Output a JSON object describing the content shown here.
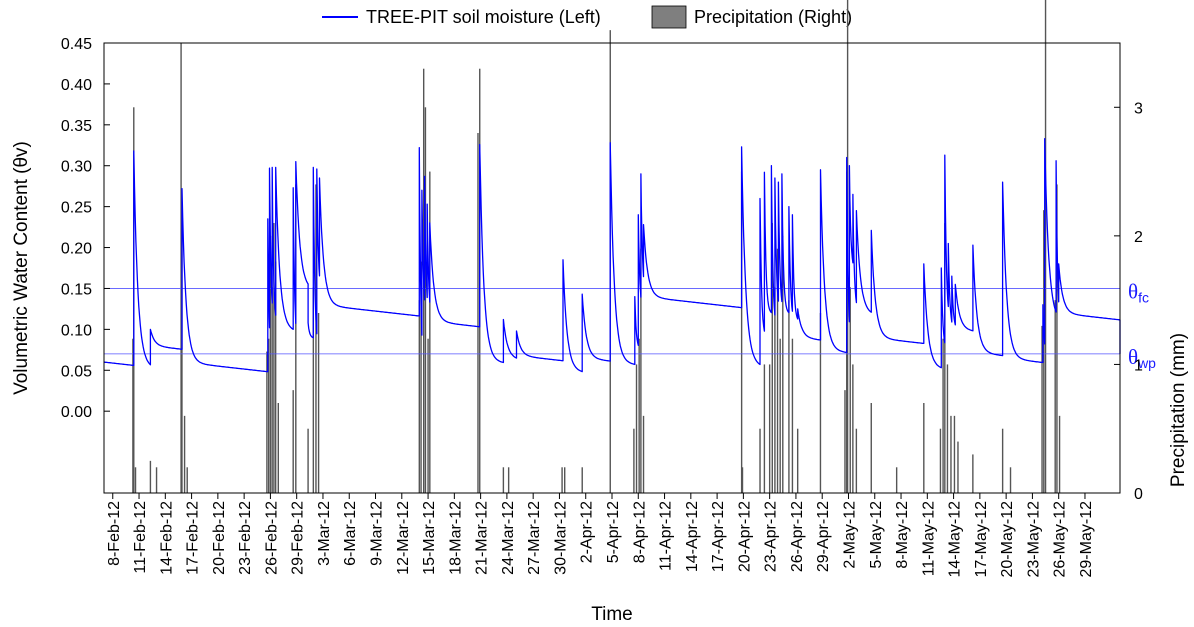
{
  "chart_data": {
    "type": "line",
    "legend": [
      {
        "label": "TREE-PIT soil moisture (Left)",
        "kind": "line",
        "color": "#0000ff"
      },
      {
        "label": "Precipitation (Right)",
        "kind": "bar",
        "color": "#7f7f7f"
      }
    ],
    "legend_position": "top-center",
    "xlabel": "Time",
    "ylabel_left": "Volumetric Water Content (θv)",
    "ylabel_right": "Precipitation (mm)",
    "x_range": [
      "2012-02-07",
      "2012-06-02"
    ],
    "x_ticks": [
      "8-Feb-12",
      "11-Feb-12",
      "14-Feb-12",
      "17-Feb-12",
      "20-Feb-12",
      "23-Feb-12",
      "26-Feb-12",
      "29-Feb-12",
      "3-Mar-12",
      "6-Mar-12",
      "9-Mar-12",
      "12-Mar-12",
      "15-Mar-12",
      "18-Mar-12",
      "21-Mar-12",
      "24-Mar-12",
      "27-Mar-12",
      "30-Mar-12",
      "2-Apr-12",
      "5-Apr-12",
      "8-Apr-12",
      "11-Apr-12",
      "14-Apr-12",
      "17-Apr-12",
      "20-Apr-12",
      "23-Apr-12",
      "26-Apr-12",
      "29-Apr-12",
      "2-May-12",
      "5-May-12",
      "8-May-12",
      "11-May-12",
      "14-May-12",
      "17-May-12",
      "20-May-12",
      "23-May-12",
      "26-May-12",
      "29-May-12"
    ],
    "y_left_ticks": [
      "0.00",
      "0.05",
      "0.10",
      "0.15",
      "0.20",
      "0.25",
      "0.30",
      "0.35",
      "0.40",
      "0.45"
    ],
    "y_left_range": [
      -0.1,
      0.45
    ],
    "y_right_ticks": [
      "0",
      "1",
      "2",
      "3"
    ],
    "y_right_range": [
      0,
      3.5
    ],
    "reference_lines": [
      {
        "name": "θfc",
        "value": 0.15,
        "color": "#5555ff"
      },
      {
        "name": "θwp",
        "value": 0.07,
        "color": "#5555ff"
      }
    ],
    "grid": false,
    "soil_moisture_events": [
      {
        "date": "2012-02-07",
        "peak": 0.06,
        "base": 0.06
      },
      {
        "date": "2012-02-10.4",
        "peak": 0.318,
        "base": 0.055
      },
      {
        "date": "2012-02-12.3",
        "peak": 0.1,
        "base": 0.08
      },
      {
        "date": "2012-02-15.9",
        "peak": 0.272,
        "base": 0.06
      },
      {
        "date": "2012-02-25.7",
        "peak": 0.235,
        "base": 0.045
      },
      {
        "date": "2012-02-25.9",
        "peak": 0.297,
        "base": 0.1
      },
      {
        "date": "2012-02-26.2",
        "peak": 0.298,
        "base": 0.1
      },
      {
        "date": "2012-02-26.6",
        "peak": 0.298,
        "base": 0.1
      },
      {
        "date": "2012-02-28.6",
        "peak": 0.273,
        "base": 0.075
      },
      {
        "date": "2012-02-28.9",
        "peak": 0.305,
        "base": 0.15
      },
      {
        "date": "2012-03-01.3",
        "peak": 0.108,
        "base": 0.09
      },
      {
        "date": "2012-03-01.9",
        "peak": 0.298,
        "base": 0.075
      },
      {
        "date": "2012-03-02.3",
        "peak": 0.296,
        "base": 0.14
      },
      {
        "date": "2012-03-02.6",
        "peak": 0.285,
        "base": 0.13
      },
      {
        "date": "2012-03-14.0",
        "peak": 0.322,
        "base": 0.048
      },
      {
        "date": "2012-03-14.3",
        "peak": 0.27,
        "base": 0.11
      },
      {
        "date": "2012-03-14.6",
        "peak": 0.287,
        "base": 0.11
      },
      {
        "date": "2012-03-14.9",
        "peak": 0.253,
        "base": 0.11
      },
      {
        "date": "2012-03-15.2",
        "peak": 0.23,
        "base": 0.11
      },
      {
        "date": "2012-03-20.9",
        "peak": 0.326,
        "base": 0.062
      },
      {
        "date": "2012-03-23.6",
        "peak": 0.112,
        "base": 0.065
      },
      {
        "date": "2012-03-25.1",
        "peak": 0.098,
        "base": 0.068
      },
      {
        "date": "2012-03-30.4",
        "peak": 0.185,
        "base": 0.05
      },
      {
        "date": "2012-04-01.6",
        "peak": 0.143,
        "base": 0.065
      },
      {
        "date": "2012-04-04.8",
        "peak": 0.328,
        "base": 0.06
      },
      {
        "date": "2012-04-07.6",
        "peak": 0.14,
        "base": 0.075
      },
      {
        "date": "2012-04-08.0",
        "peak": 0.24,
        "base": 0.12
      },
      {
        "date": "2012-04-08.3",
        "peak": 0.29,
        "base": 0.14
      },
      {
        "date": "2012-04-08.6",
        "peak": 0.228,
        "base": 0.14
      },
      {
        "date": "2012-04-19.8",
        "peak": 0.323,
        "base": 0.057
      },
      {
        "date": "2012-04-21.9",
        "peak": 0.26,
        "base": 0.09
      },
      {
        "date": "2012-04-22.4",
        "peak": 0.292,
        "base": 0.12
      },
      {
        "date": "2012-04-23.2",
        "peak": 0.3,
        "base": 0.1
      },
      {
        "date": "2012-04-23.6",
        "peak": 0.285,
        "base": 0.12
      },
      {
        "date": "2012-04-24.0",
        "peak": 0.28,
        "base": 0.12
      },
      {
        "date": "2012-04-24.4",
        "peak": 0.29,
        "base": 0.12
      },
      {
        "date": "2012-04-25.2",
        "peak": 0.25,
        "base": 0.11
      },
      {
        "date": "2012-04-25.6",
        "peak": 0.24,
        "base": 0.11
      },
      {
        "date": "2012-04-26.2",
        "peak": 0.125,
        "base": 0.09
      },
      {
        "date": "2012-04-28.8",
        "peak": 0.295,
        "base": 0.075
      },
      {
        "date": "2012-05-01.8",
        "peak": 0.31,
        "base": 0.07
      },
      {
        "date": "2012-05-02.1",
        "peak": 0.3,
        "base": 0.17
      },
      {
        "date": "2012-05-02.5",
        "peak": 0.265,
        "base": 0.12
      },
      {
        "date": "2012-05-02.9",
        "peak": 0.245,
        "base": 0.12
      },
      {
        "date": "2012-05-04.6",
        "peak": 0.221,
        "base": 0.09
      },
      {
        "date": "2012-05-10.6",
        "peak": 0.18,
        "base": 0.054
      },
      {
        "date": "2012-05-12.6",
        "peak": 0.175,
        "base": 0.075
      },
      {
        "date": "2012-05-13.0",
        "peak": 0.313,
        "base": 0.11
      },
      {
        "date": "2012-05-13.4",
        "peak": 0.205,
        "base": 0.1
      },
      {
        "date": "2012-05-13.8",
        "peak": 0.165,
        "base": 0.1
      },
      {
        "date": "2012-05-14.2",
        "peak": 0.155,
        "base": 0.1
      },
      {
        "date": "2012-05-16.2",
        "peak": 0.203,
        "base": 0.072
      },
      {
        "date": "2012-05-19.6",
        "peak": 0.28,
        "base": 0.065
      },
      {
        "date": "2012-05-24.2",
        "peak": 0.13,
        "base": 0.062
      },
      {
        "date": "2012-05-24.4",
        "peak": 0.333,
        "base": 0.11
      },
      {
        "date": "2012-05-25.7",
        "peak": 0.306,
        "base": 0.1
      },
      {
        "date": "2012-05-26.0",
        "peak": 0.18,
        "base": 0.12
      },
      {
        "date": "2012-06-02",
        "peak": 0.07,
        "base": 0.07
      }
    ],
    "precipitation": [
      {
        "date": "2012-02-10.4",
        "mm": 3.0
      },
      {
        "date": "2012-02-10.3",
        "mm": 1.2
      },
      {
        "date": "2012-02-10.6",
        "mm": 0.2
      },
      {
        "date": "2012-02-12.3",
        "mm": 0.25
      },
      {
        "date": "2012-02-13.0",
        "mm": 0.2
      },
      {
        "date": "2012-02-15.8",
        "mm": 3.5
      },
      {
        "date": "2012-02-15.9",
        "mm": 2.1
      },
      {
        "date": "2012-02-16.2",
        "mm": 0.6
      },
      {
        "date": "2012-02-16.5",
        "mm": 0.2
      },
      {
        "date": "2012-02-25.6",
        "mm": 1.1
      },
      {
        "date": "2012-02-25.8",
        "mm": 1.2
      },
      {
        "date": "2012-02-26.0",
        "mm": 2.0
      },
      {
        "date": "2012-02-26.2",
        "mm": 1.6
      },
      {
        "date": "2012-02-26.4",
        "mm": 2.1
      },
      {
        "date": "2012-02-26.6",
        "mm": 1.8
      },
      {
        "date": "2012-02-26.9",
        "mm": 0.7
      },
      {
        "date": "2012-02-28.6",
        "mm": 0.8
      },
      {
        "date": "2012-02-28.9",
        "mm": 2.4
      },
      {
        "date": "2012-03-01.3",
        "mm": 0.5
      },
      {
        "date": "2012-03-01.9",
        "mm": 1.6
      },
      {
        "date": "2012-03-02.2",
        "mm": 2.4
      },
      {
        "date": "2012-03-02.5",
        "mm": 1.4
      },
      {
        "date": "2012-03-14.0",
        "mm": 1.5
      },
      {
        "date": "2012-03-14.2",
        "mm": 1.8
      },
      {
        "date": "2012-03-14.5",
        "mm": 3.3
      },
      {
        "date": "2012-03-14.7",
        "mm": 3.0
      },
      {
        "date": "2012-03-15.0",
        "mm": 1.2
      },
      {
        "date": "2012-03-15.2",
        "mm": 2.5
      },
      {
        "date": "2012-03-20.9",
        "mm": 3.3
      },
      {
        "date": "2012-03-20.7",
        "mm": 2.8
      },
      {
        "date": "2012-03-23.6",
        "mm": 0.2
      },
      {
        "date": "2012-03-24.2",
        "mm": 0.2
      },
      {
        "date": "2012-03-30.3",
        "mm": 0.2
      },
      {
        "date": "2012-03-30.6",
        "mm": 0.2
      },
      {
        "date": "2012-04-01.6",
        "mm": 0.2
      },
      {
        "date": "2012-04-04.8",
        "mm": 3.6
      },
      {
        "date": "2012-04-07.5",
        "mm": 0.5
      },
      {
        "date": "2012-04-07.8",
        "mm": 1.0
      },
      {
        "date": "2012-04-08.1",
        "mm": 1.2
      },
      {
        "date": "2012-04-08.3",
        "mm": 1.9
      },
      {
        "date": "2012-04-08.6",
        "mm": 0.6
      },
      {
        "date": "2012-04-19.8",
        "mm": 2.5
      },
      {
        "date": "2012-04-19.9",
        "mm": 0.2
      },
      {
        "date": "2012-04-21.9",
        "mm": 0.5
      },
      {
        "date": "2012-04-22.4",
        "mm": 1.0
      },
      {
        "date": "2012-04-23.0",
        "mm": 1.0
      },
      {
        "date": "2012-04-23.3",
        "mm": 2.1
      },
      {
        "date": "2012-04-23.6",
        "mm": 1.6
      },
      {
        "date": "2012-04-23.9",
        "mm": 1.9
      },
      {
        "date": "2012-04-24.2",
        "mm": 1.2
      },
      {
        "date": "2012-04-24.5",
        "mm": 2.0
      },
      {
        "date": "2012-04-25.2",
        "mm": 1.5
      },
      {
        "date": "2012-04-25.6",
        "mm": 1.2
      },
      {
        "date": "2012-04-26.2",
        "mm": 0.5
      },
      {
        "date": "2012-04-28.8",
        "mm": 1.4
      },
      {
        "date": "2012-05-01.6",
        "mm": 0.8
      },
      {
        "date": "2012-05-01.8",
        "mm": 2.5
      },
      {
        "date": "2012-05-01.9",
        "mm": 3.9
      },
      {
        "date": "2012-05-02.2",
        "mm": 1.6
      },
      {
        "date": "2012-05-02.5",
        "mm": 1.0
      },
      {
        "date": "2012-05-02.9",
        "mm": 0.5
      },
      {
        "date": "2012-05-04.6",
        "mm": 0.7
      },
      {
        "date": "2012-05-07.5",
        "mm": 0.2
      },
      {
        "date": "2012-05-10.6",
        "mm": 0.7
      },
      {
        "date": "2012-05-12.5",
        "mm": 0.5
      },
      {
        "date": "2012-05-12.8",
        "mm": 1.2
      },
      {
        "date": "2012-05-13.0",
        "mm": 2.1
      },
      {
        "date": "2012-05-13.3",
        "mm": 1.0
      },
      {
        "date": "2012-05-13.7",
        "mm": 0.6
      },
      {
        "date": "2012-05-14.1",
        "mm": 0.6
      },
      {
        "date": "2012-05-14.5",
        "mm": 0.4
      },
      {
        "date": "2012-05-16.2",
        "mm": 0.3
      },
      {
        "date": "2012-05-19.6",
        "mm": 0.5
      },
      {
        "date": "2012-05-20.5",
        "mm": 0.2
      },
      {
        "date": "2012-05-24.1",
        "mm": 1.3
      },
      {
        "date": "2012-05-24.3",
        "mm": 2.2
      },
      {
        "date": "2012-05-24.5",
        "mm": 4.0
      },
      {
        "date": "2012-05-25.6",
        "mm": 1.5
      },
      {
        "date": "2012-05-25.8",
        "mm": 2.4
      },
      {
        "date": "2012-05-26.1",
        "mm": 0.6
      }
    ]
  }
}
